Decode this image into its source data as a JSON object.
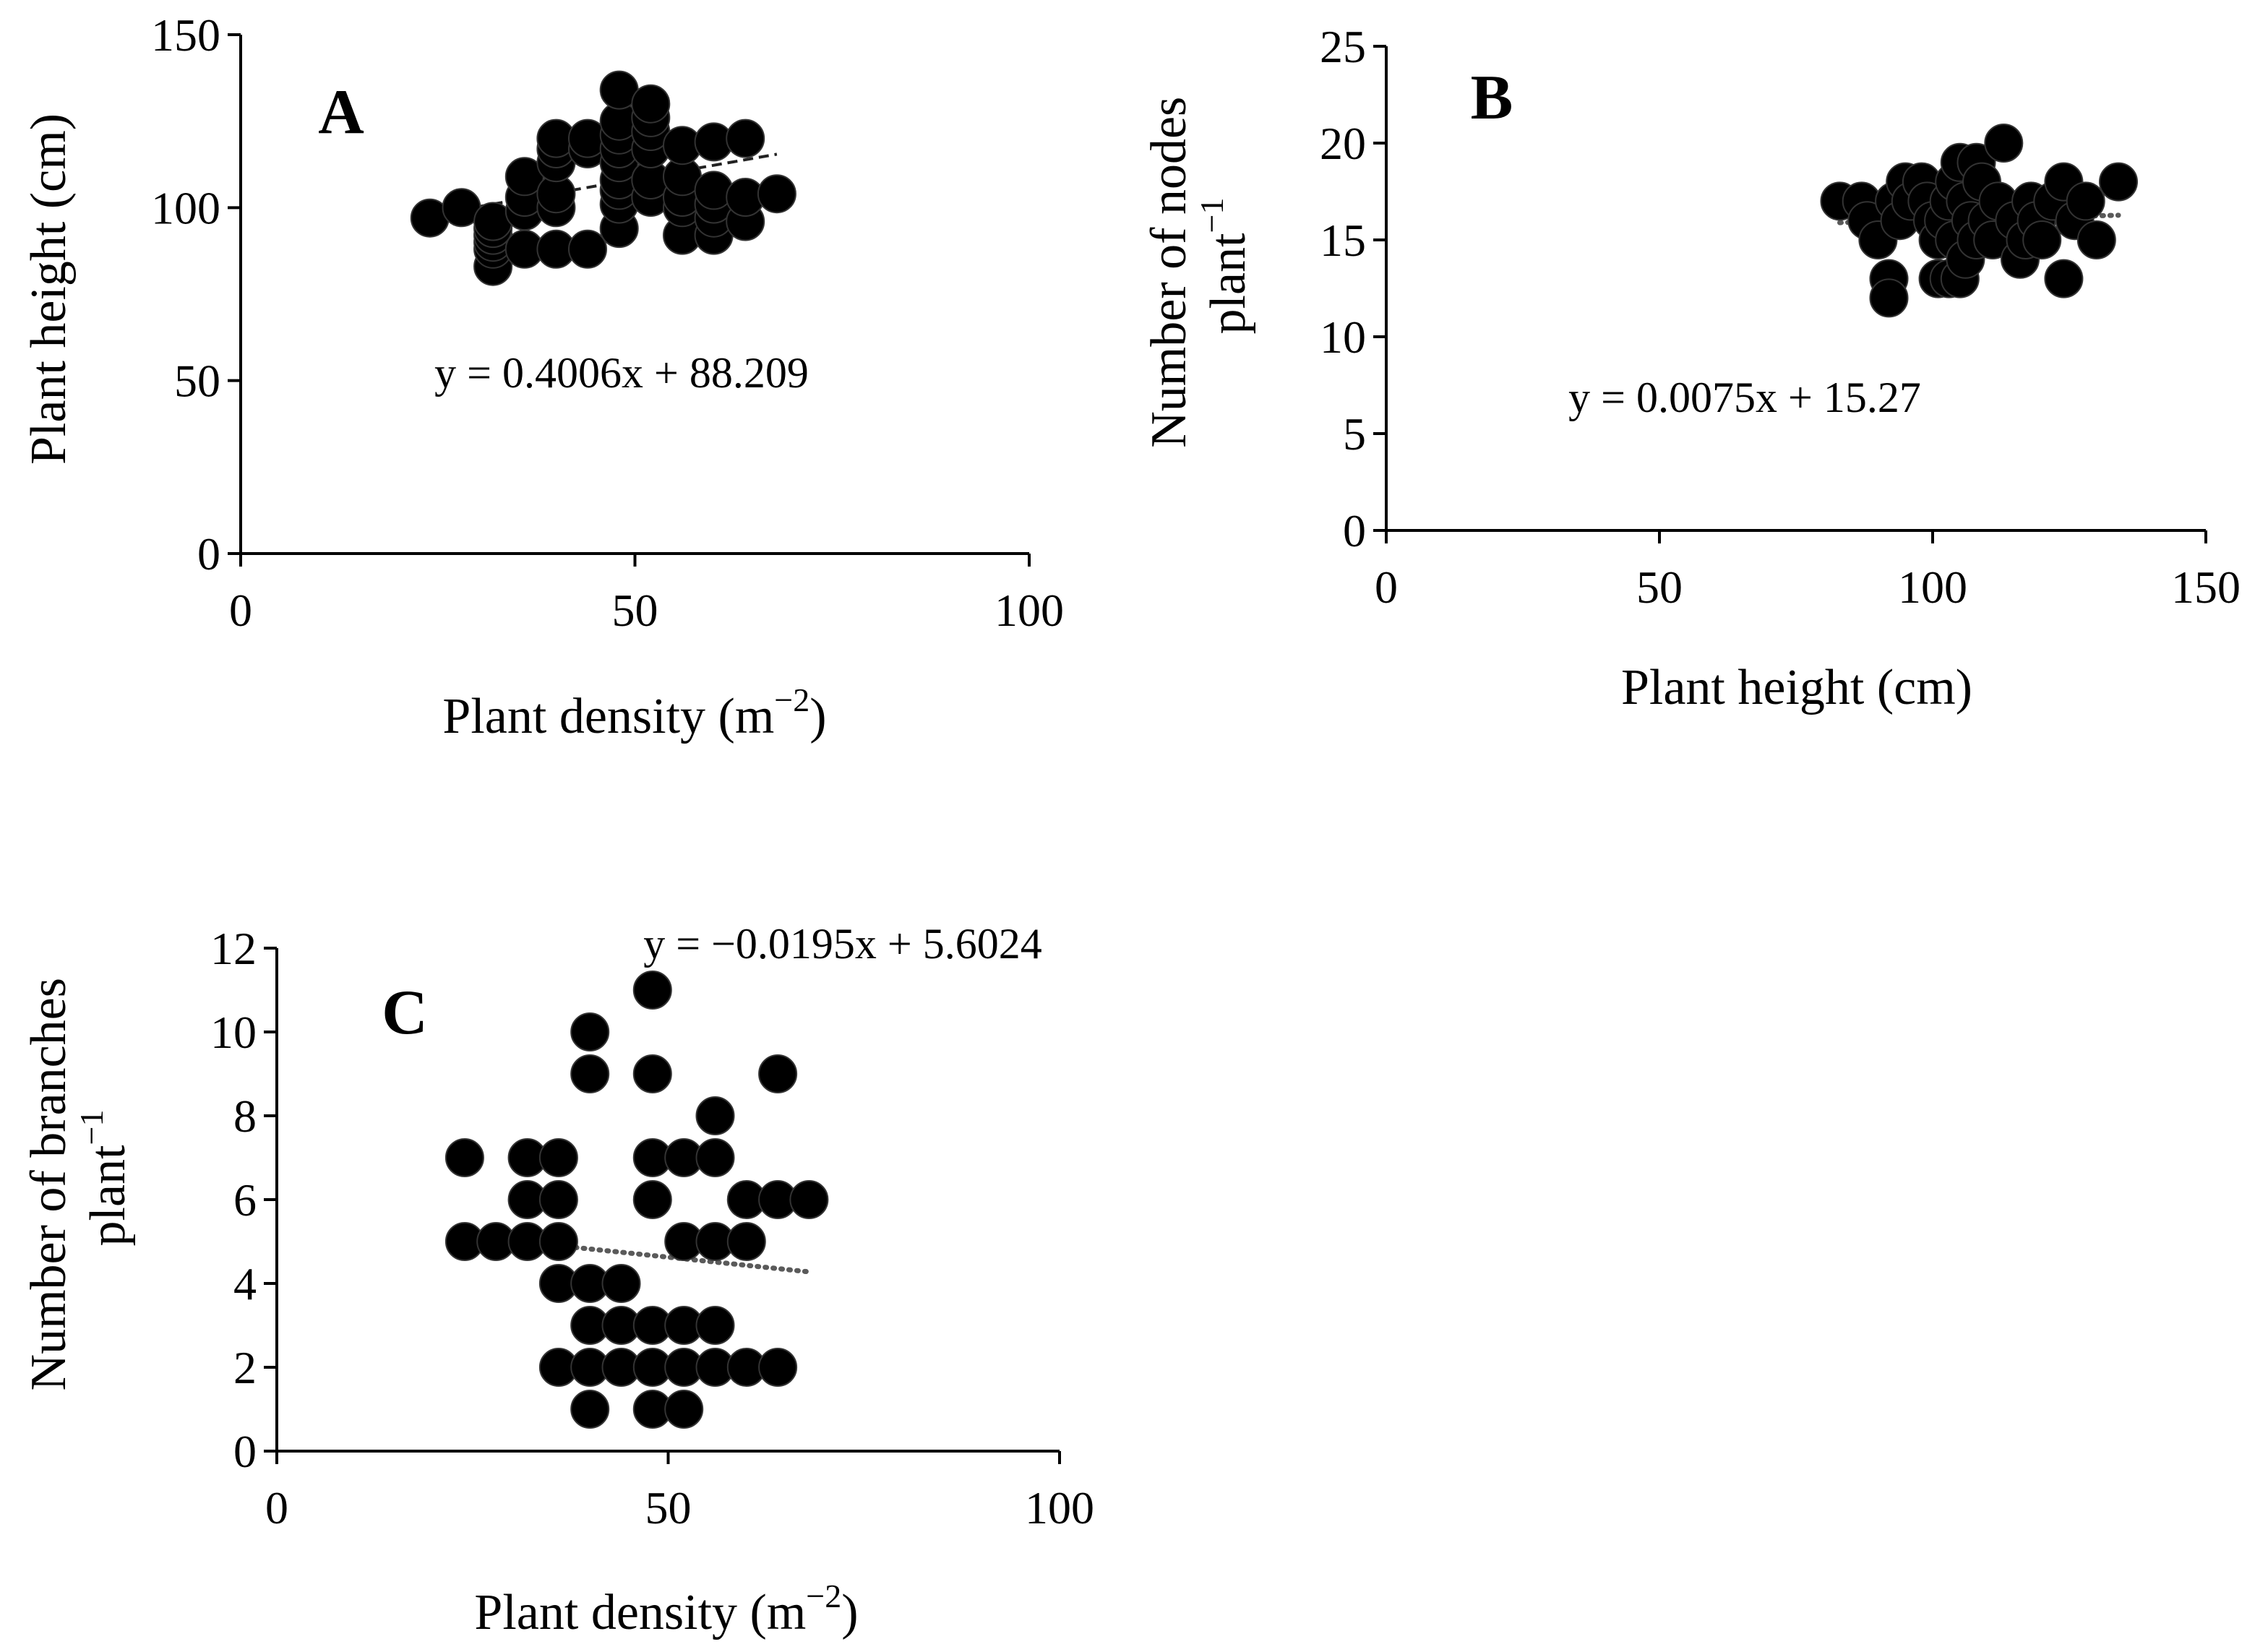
{
  "chart_data": [
    {
      "type": "scatter",
      "panel": "A",
      "equation": "y = 0.4006x + 88.209",
      "xlabel": "Plant density (m−2)",
      "xlabel_main": "Plant density (m",
      "xlabel_sup": "−2",
      "xlabel_close": ")",
      "ylabel": "Plant height (cm)",
      "xlim": [
        0,
        100
      ],
      "ylim": [
        0,
        150
      ],
      "x_ticks": [
        0,
        50,
        100
      ],
      "y_ticks": [
        0,
        50,
        100,
        150
      ],
      "trendline": {
        "slope": 0.4006,
        "intercept": 88.209,
        "x_range": [
          24,
          68
        ],
        "style": "dashed"
      },
      "marker_color": "#000000",
      "x": [
        24,
        28,
        32,
        32,
        32,
        32,
        32,
        32,
        36,
        36,
        36,
        36,
        40,
        40,
        40,
        40,
        40,
        40,
        44,
        44,
        44,
        48,
        48,
        48,
        48,
        48,
        48,
        48,
        48,
        48,
        52,
        52,
        52,
        52,
        52,
        52,
        56,
        56,
        56,
        56,
        56,
        60,
        60,
        60,
        60,
        60,
        64,
        64,
        64,
        68
      ],
      "y": [
        97,
        100,
        83,
        88,
        90,
        92,
        94,
        96,
        88,
        99,
        103,
        109,
        88,
        100,
        104,
        113,
        117,
        120,
        88,
        117,
        120,
        94,
        101,
        105,
        108,
        113,
        117,
        121,
        125,
        134,
        103,
        108,
        117,
        122,
        126,
        130,
        92,
        100,
        103,
        109,
        118,
        92,
        97,
        101,
        105,
        119,
        96,
        103,
        120,
        104
      ]
    },
    {
      "type": "scatter",
      "panel": "B",
      "equation": "y = 0.0075x + 15.27",
      "xlabel": "Plant height (cm)",
      "ylabel": "Number of nodes plant−1",
      "ylabel_line1": "Number of nodes",
      "ylabel_line2_main": "plant",
      "ylabel_line2_sup": "−1",
      "xlim": [
        0,
        150
      ],
      "ylim": [
        0,
        25
      ],
      "x_ticks": [
        0,
        50,
        100,
        150
      ],
      "y_ticks": [
        0,
        5,
        10,
        15,
        20,
        25
      ],
      "trendline": {
        "slope": 0.0075,
        "intercept": 15.27,
        "x_range": [
          83,
          134
        ],
        "style": "dotted"
      },
      "marker_color": "#000000",
      "x": [
        83,
        87,
        88,
        90,
        92,
        92,
        93,
        94,
        95,
        96,
        98,
        99,
        100,
        101,
        101,
        102,
        103,
        103,
        104,
        104,
        105,
        105,
        106,
        106,
        107,
        108,
        108,
        109,
        110,
        111,
        112,
        113,
        115,
        116,
        117,
        118,
        119,
        120,
        122,
        124,
        124,
        126,
        128,
        130,
        134
      ],
      "y": [
        17,
        17,
        16,
        15,
        13,
        12,
        17,
        16,
        18,
        17,
        18,
        17,
        16,
        13,
        15,
        16,
        17,
        13,
        18,
        15,
        19,
        13,
        17,
        14,
        16,
        19,
        15,
        18,
        16,
        15,
        17,
        20,
        16,
        14,
        15,
        17,
        16,
        15,
        17,
        18,
        13,
        16,
        17,
        15,
        18
      ]
    },
    {
      "type": "scatter",
      "panel": "C",
      "equation": "y = −0.0195x + 5.6024",
      "xlabel": "Plant density (m−2)",
      "xlabel_main": "Plant density (m",
      "xlabel_sup": "−2",
      "xlabel_close": ")",
      "ylabel": "Number of branches plant−1",
      "ylabel_line1": "Number of branches",
      "ylabel_line2_main": "plant",
      "ylabel_line2_sup": "−1",
      "xlim": [
        0,
        100
      ],
      "ylim": [
        0,
        12
      ],
      "x_ticks": [
        0,
        50,
        100
      ],
      "y_ticks": [
        0,
        2,
        4,
        6,
        8,
        10,
        12
      ],
      "trendline": {
        "slope": -0.0195,
        "intercept": 5.6024,
        "x_range": [
          24,
          68
        ],
        "style": "dotted"
      },
      "marker_color": "#000000",
      "x": [
        24,
        24,
        28,
        32,
        32,
        32,
        36,
        36,
        36,
        36,
        36,
        40,
        40,
        40,
        40,
        40,
        40,
        44,
        44,
        44,
        48,
        48,
        48,
        48,
        48,
        48,
        48,
        52,
        52,
        52,
        52,
        52,
        56,
        56,
        56,
        56,
        56,
        60,
        60,
        60,
        64,
        64,
        64,
        68
      ],
      "y": [
        7,
        5,
        5,
        7,
        6,
        5,
        7,
        6,
        5,
        4,
        2,
        10,
        9,
        4,
        3,
        2,
        1,
        4,
        3,
        2,
        11,
        9,
        7,
        6,
        3,
        2,
        1,
        7,
        5,
        3,
        2,
        1,
        8,
        7,
        5,
        3,
        2,
        6,
        5,
        2,
        9,
        6,
        2,
        6
      ]
    }
  ]
}
